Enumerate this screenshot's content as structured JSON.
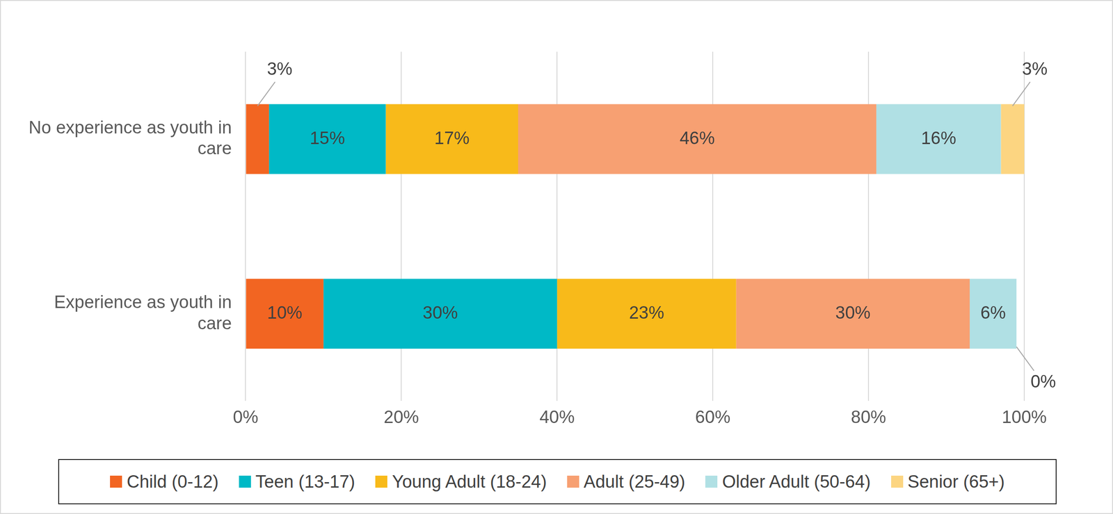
{
  "chart_data": {
    "type": "bar",
    "orientation": "horizontal",
    "stacked": true,
    "data_labels": true,
    "legend": "bottom",
    "grid": true,
    "categories": [
      "No experience as youth in care",
      "Experience as youth in care"
    ],
    "xlim": [
      0,
      100
    ],
    "xticks": [
      {
        "value": 0,
        "label": "0%"
      },
      {
        "value": 20,
        "label": "20%"
      },
      {
        "value": 40,
        "label": "40%"
      },
      {
        "value": 60,
        "label": "60%"
      },
      {
        "value": 80,
        "label": "80%"
      },
      {
        "value": 100,
        "label": "100%"
      }
    ],
    "series": [
      {
        "name": "Child (0-12)",
        "color": "#f26522",
        "values": [
          3,
          10
        ],
        "value_labels": [
          "3%",
          "10%"
        ]
      },
      {
        "name": "Teen (13-17)",
        "color": "#00b9c6",
        "values": [
          15,
          30
        ],
        "value_labels": [
          "15%",
          "30%"
        ]
      },
      {
        "name": "Young Adult (18-24)",
        "color": "#f8ba1a",
        "values": [
          17,
          23
        ],
        "value_labels": [
          "17%",
          "23%"
        ]
      },
      {
        "name": "Adult (25-49)",
        "color": "#f7a072",
        "values": [
          46,
          30
        ],
        "value_labels": [
          "46%",
          "30%"
        ]
      },
      {
        "name": "Older Adult (50-64)",
        "color": "#b0e0e4",
        "values": [
          16,
          6
        ],
        "value_labels": [
          "16%",
          "6%"
        ]
      },
      {
        "name": "Senior (65+)",
        "color": "#fcd581",
        "values": [
          3,
          0
        ],
        "value_labels": [
          "3%",
          "0%"
        ]
      }
    ]
  }
}
